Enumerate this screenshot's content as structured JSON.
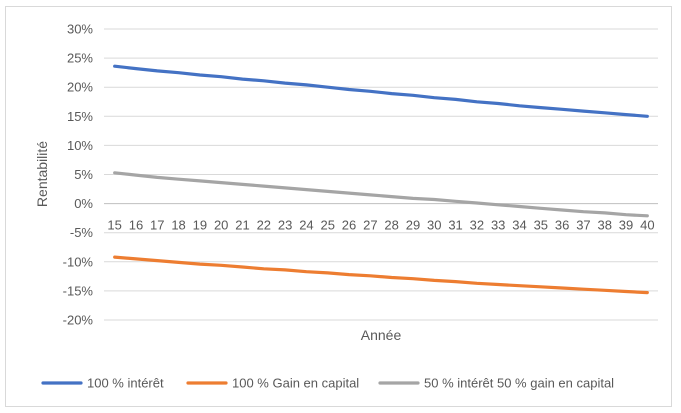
{
  "chart_data": {
    "type": "line",
    "title": "",
    "xlabel": "Année",
    "ylabel": "Rentabilité",
    "x": [
      15,
      16,
      17,
      18,
      19,
      20,
      21,
      22,
      23,
      24,
      25,
      26,
      27,
      28,
      29,
      30,
      31,
      32,
      33,
      34,
      35,
      36,
      37,
      38,
      39,
      40
    ],
    "ylim": [
      -20,
      30
    ],
    "yticks": [
      30,
      25,
      20,
      15,
      10,
      5,
      0,
      -5,
      -10,
      -15,
      -20
    ],
    "ytick_labels": [
      "30%",
      "25%",
      "20%",
      "15%",
      "10%",
      "5%",
      "0%",
      "-5%",
      "-10%",
      "-15%",
      "-20%"
    ],
    "grid": true,
    "legend_position": "bottom",
    "series": [
      {
        "name": "100 % intérêt",
        "color": "#4472c4",
        "values": [
          23.6,
          23.2,
          22.8,
          22.5,
          22.1,
          21.8,
          21.4,
          21.1,
          20.7,
          20.4,
          20.0,
          19.6,
          19.3,
          18.9,
          18.6,
          18.2,
          17.9,
          17.5,
          17.2,
          16.8,
          16.5,
          16.2,
          15.9,
          15.6,
          15.3,
          15.0
        ]
      },
      {
        "name": "100 % Gain en capital",
        "color": "#ed7d31",
        "values": [
          -9.2,
          -9.5,
          -9.8,
          -10.1,
          -10.4,
          -10.6,
          -10.9,
          -11.2,
          -11.4,
          -11.7,
          -11.9,
          -12.2,
          -12.4,
          -12.7,
          -12.9,
          -13.2,
          -13.4,
          -13.7,
          -13.9,
          -14.1,
          -14.3,
          -14.5,
          -14.7,
          -14.9,
          -15.1,
          -15.3
        ]
      },
      {
        "name": "50 % intérêt 50 % gain en capital",
        "color": "#a5a5a5",
        "values": [
          5.3,
          4.9,
          4.5,
          4.2,
          3.9,
          3.6,
          3.3,
          3.0,
          2.7,
          2.4,
          2.1,
          1.8,
          1.5,
          1.2,
          0.9,
          0.7,
          0.4,
          0.1,
          -0.2,
          -0.5,
          -0.8,
          -1.1,
          -1.4,
          -1.6,
          -1.9,
          -2.1
        ]
      }
    ]
  }
}
